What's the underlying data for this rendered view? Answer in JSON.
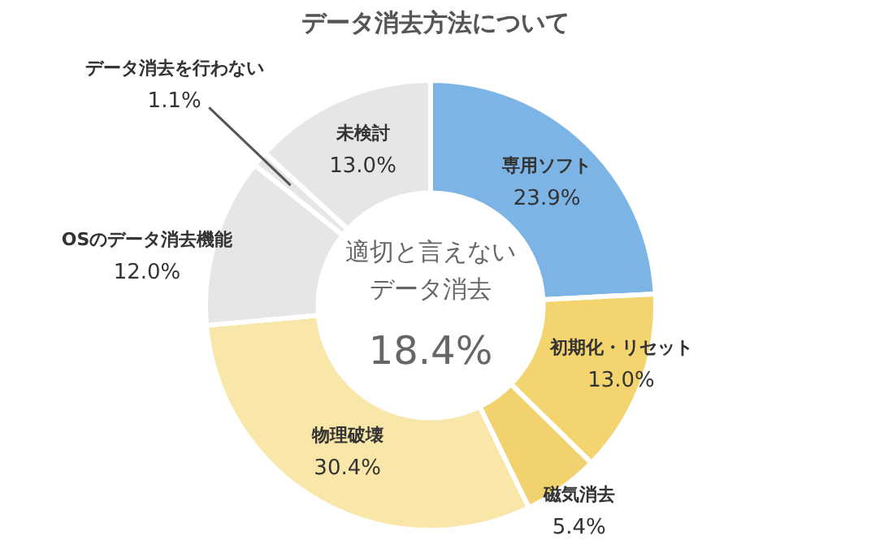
{
  "chart_data": {
    "type": "donut",
    "title": "データ消去方法について",
    "categories": [
      "専用ソフト",
      "初期化・リセット",
      "磁気消去",
      "物理破壊",
      "OSのデータ消去機能",
      "データ消去を行わない",
      "未検討"
    ],
    "values": [
      23.9,
      13.0,
      5.4,
      30.4,
      12.0,
      1.1,
      13.0
    ],
    "value_labels": [
      "23.9%",
      "13.0%",
      "5.4%",
      "30.4%",
      "12.0%",
      "1.1%",
      "13.0%"
    ],
    "colors": [
      "#7db4e6",
      "#f3d46f",
      "#f2d26e",
      "#f9e6a9",
      "#e6e6e6",
      "#e6e6e6",
      "#e6e6e6"
    ],
    "annotations": [
      "適切と言えない",
      "データ消去",
      "18.4%"
    ],
    "legend": false
  }
}
